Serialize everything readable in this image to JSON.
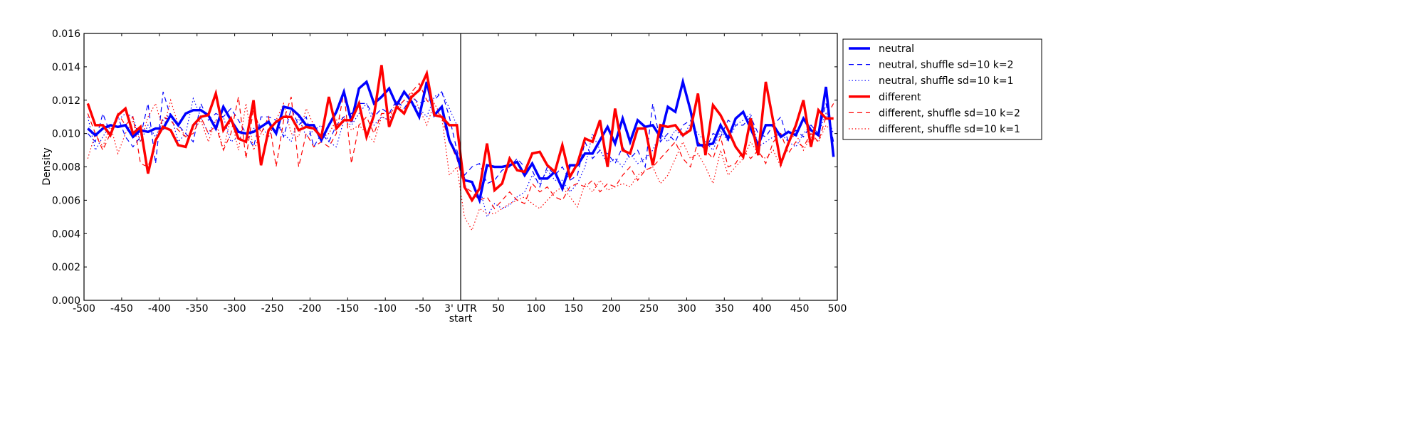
{
  "chart_data": {
    "type": "line",
    "title": "",
    "xlabel": "",
    "ylabel": "Density",
    "xlim": [
      -500,
      500
    ],
    "ylim": [
      0,
      0.016
    ],
    "grid": false,
    "legend_placement": "outside-right-top",
    "x_tick_labels": [
      "-500",
      "-450",
      "-400",
      "-350",
      "-300",
      "-250",
      "-200",
      "-150",
      "-100",
      "-50",
      "3' UTR\nstart",
      "50",
      "100",
      "150",
      "200",
      "250",
      "300",
      "350",
      "400",
      "450",
      "500"
    ],
    "x_ticks": [
      -500,
      -450,
      -400,
      -350,
      -300,
      -250,
      -200,
      -150,
      -100,
      -50,
      0,
      50,
      100,
      150,
      200,
      250,
      300,
      350,
      400,
      450,
      500
    ],
    "y_tick_labels": [
      "0.000",
      "0.002",
      "0.004",
      "0.006",
      "0.008",
      "0.010",
      "0.012",
      "0.014",
      "0.016"
    ],
    "y_ticks": [
      0,
      0.002,
      0.004,
      0.006,
      0.008,
      0.01,
      0.012,
      0.014,
      0.016
    ],
    "reference_line_x": 0,
    "x": {
      "start": -495,
      "step": 10,
      "count": 100
    },
    "series": [
      {
        "name": "neutral",
        "color": "#0000ff",
        "style": "solid-thick",
        "values": [
          0.0103,
          0.0099,
          0.0103,
          0.0105,
          0.0104,
          0.0105,
          0.0098,
          0.0102,
          0.0101,
          0.0103,
          0.0103,
          0.0111,
          0.0105,
          0.0112,
          0.0114,
          0.0114,
          0.0111,
          0.0103,
          0.0116,
          0.0108,
          0.0101,
          0.01,
          0.0101,
          0.0104,
          0.0107,
          0.01,
          0.0116,
          0.0115,
          0.0111,
          0.0105,
          0.0105,
          0.0096,
          0.0105,
          0.0113,
          0.0125,
          0.0107,
          0.0127,
          0.0131,
          0.0118,
          0.0122,
          0.0127,
          0.0117,
          0.0125,
          0.0119,
          0.011,
          0.0131,
          0.0111,
          0.0116,
          0.0096,
          0.0087,
          0.0072,
          0.0071,
          0.006,
          0.0081,
          0.008,
          0.008,
          0.0081,
          0.0083,
          0.0075,
          0.0082,
          0.0073,
          0.0073,
          0.0077,
          0.0067,
          0.0081,
          0.0081,
          0.0088,
          0.0088,
          0.0096,
          0.0104,
          0.0094,
          0.0109,
          0.0095,
          0.0108,
          0.0104,
          0.0105,
          0.0098,
          0.0116,
          0.0113,
          0.0131,
          0.0114,
          0.0093,
          0.0093,
          0.0094,
          0.0105,
          0.0097,
          0.0109,
          0.0113,
          0.0103,
          0.0093,
          0.0105,
          0.0105,
          0.0098,
          0.0101,
          0.0099,
          0.0109,
          0.0102,
          0.0099,
          0.0128,
          0.0086
        ]
      },
      {
        "name": "neutral, shuffle sd=10 k=2",
        "color": "#0000ff",
        "style": "dashed",
        "values": [
          0.01,
          0.0095,
          0.0112,
          0.01,
          0.011,
          0.0098,
          0.0092,
          0.0098,
          0.0118,
          0.0082,
          0.0125,
          0.011,
          0.0105,
          0.01,
          0.0095,
          0.0118,
          0.0108,
          0.0112,
          0.011,
          0.0115,
          0.0108,
          0.01,
          0.0092,
          0.011,
          0.011,
          0.0108,
          0.0098,
          0.0115,
          0.0105,
          0.011,
          0.0092,
          0.01,
          0.0095,
          0.0105,
          0.011,
          0.0112,
          0.0118,
          0.0118,
          0.011,
          0.0115,
          0.0112,
          0.012,
          0.0115,
          0.0122,
          0.0118,
          0.012,
          0.012,
          0.0125,
          0.011,
          0.009,
          0.0075,
          0.008,
          0.0082,
          0.007,
          0.0072,
          0.0078,
          0.008,
          0.0085,
          0.008,
          0.0078,
          0.0068,
          0.008,
          0.0075,
          0.008,
          0.0072,
          0.0075,
          0.0095,
          0.0085,
          0.009,
          0.0088,
          0.0082,
          0.0092,
          0.0085,
          0.009,
          0.008,
          0.0118,
          0.0095,
          0.01,
          0.0095,
          0.0105,
          0.0108,
          0.0095,
          0.009,
          0.01,
          0.0098,
          0.0108,
          0.0105,
          0.0105,
          0.011,
          0.01,
          0.0098,
          0.0105,
          0.011,
          0.0095,
          0.0102,
          0.0098,
          0.0105,
          0.01,
          0.0118,
          0.0095
        ]
      },
      {
        "name": "neutral, shuffle sd=10 k=1",
        "color": "#0000ff",
        "style": "dotted",
        "values": [
          0.011,
          0.009,
          0.0098,
          0.0105,
          0.0108,
          0.0112,
          0.011,
          0.0095,
          0.0105,
          0.0098,
          0.0108,
          0.0112,
          0.0095,
          0.01,
          0.0121,
          0.011,
          0.01,
          0.0108,
          0.011,
          0.0095,
          0.0098,
          0.0095,
          0.0103,
          0.0105,
          0.0098,
          0.0108,
          0.01,
          0.0095,
          0.011,
          0.0098,
          0.0102,
          0.0105,
          0.0095,
          0.0092,
          0.0108,
          0.0105,
          0.0112,
          0.0118,
          0.0105,
          0.011,
          0.0108,
          0.0115,
          0.012,
          0.0118,
          0.0115,
          0.011,
          0.0122,
          0.0125,
          0.0115,
          0.0105,
          0.007,
          0.006,
          0.0068,
          0.005,
          0.0058,
          0.0055,
          0.0057,
          0.0062,
          0.0065,
          0.0075,
          0.007,
          0.0078,
          0.0072,
          0.0072,
          0.0065,
          0.007,
          0.008,
          0.01,
          0.009,
          0.0082,
          0.0085,
          0.008,
          0.0088,
          0.0082,
          0.0085,
          0.009,
          0.01,
          0.0095,
          0.0102,
          0.0098,
          0.0106,
          0.01,
          0.0095,
          0.009,
          0.0102,
          0.0095,
          0.0105,
          0.0108,
          0.0112,
          0.0092,
          0.0095,
          0.0098,
          0.01,
          0.0095,
          0.0092,
          0.01,
          0.0105,
          0.01,
          0.0112,
          0.01
        ]
      },
      {
        "name": "different",
        "color": "#ff0000",
        "style": "solid-thick",
        "values": [
          0.0118,
          0.0105,
          0.0105,
          0.0099,
          0.0111,
          0.0115,
          0.01,
          0.0104,
          0.0076,
          0.0096,
          0.0104,
          0.0102,
          0.0093,
          0.0092,
          0.0105,
          0.011,
          0.0111,
          0.0124,
          0.0102,
          0.0109,
          0.0097,
          0.0095,
          0.012,
          0.0081,
          0.0102,
          0.0107,
          0.011,
          0.011,
          0.0102,
          0.0104,
          0.0103,
          0.0098,
          0.0122,
          0.0103,
          0.0108,
          0.0108,
          0.0118,
          0.0098,
          0.0111,
          0.0141,
          0.0104,
          0.0116,
          0.0112,
          0.0122,
          0.0126,
          0.0136,
          0.0111,
          0.011,
          0.0105,
          0.0105,
          0.0068,
          0.006,
          0.0067,
          0.0094,
          0.0066,
          0.007,
          0.0085,
          0.0078,
          0.0077,
          0.0088,
          0.0089,
          0.0081,
          0.0077,
          0.0093,
          0.0074,
          0.0082,
          0.0097,
          0.0095,
          0.0108,
          0.008,
          0.0115,
          0.009,
          0.0088,
          0.0103,
          0.0103,
          0.0081,
          0.0105,
          0.0104,
          0.0105,
          0.0099,
          0.0102,
          0.0124,
          0.0087,
          0.0117,
          0.0111,
          0.0102,
          0.0092,
          0.0086,
          0.0109,
          0.0087,
          0.0131,
          0.0107,
          0.0082,
          0.0094,
          0.0105,
          0.012,
          0.0092,
          0.0114,
          0.0109,
          0.0109
        ]
      },
      {
        "name": "different, shuffle sd=10 k=2",
        "color": "#ff0000",
        "style": "dashed",
        "values": [
          0.0112,
          0.01,
          0.009,
          0.01,
          0.0112,
          0.0105,
          0.011,
          0.0082,
          0.008,
          0.0095,
          0.011,
          0.0108,
          0.0102,
          0.0098,
          0.01,
          0.011,
          0.01,
          0.0105,
          0.009,
          0.01,
          0.0122,
          0.0085,
          0.0115,
          0.01,
          0.011,
          0.008,
          0.0108,
          0.0122,
          0.008,
          0.01,
          0.0092,
          0.0095,
          0.0092,
          0.01,
          0.0125,
          0.0082,
          0.0105,
          0.011,
          0.01,
          0.0112,
          0.0112,
          0.0115,
          0.012,
          0.0125,
          0.013,
          0.012,
          0.0115,
          0.011,
          0.0095,
          0.0085,
          0.0068,
          0.0065,
          0.006,
          0.0062,
          0.0055,
          0.006,
          0.0065,
          0.006,
          0.0058,
          0.007,
          0.0065,
          0.0068,
          0.0062,
          0.006,
          0.0068,
          0.007,
          0.0068,
          0.0072,
          0.0065,
          0.007,
          0.0068,
          0.0075,
          0.008,
          0.0072,
          0.0078,
          0.008,
          0.0085,
          0.009,
          0.0095,
          0.0085,
          0.008,
          0.0095,
          0.009,
          0.0085,
          0.0098,
          0.008,
          0.0082,
          0.009,
          0.0085,
          0.009,
          0.0082,
          0.0095,
          0.01,
          0.0088,
          0.0095,
          0.0092,
          0.01,
          0.0095,
          0.011,
          0.0118
        ]
      },
      {
        "name": "different, shuffle sd=10 k=1",
        "color": "#ff0000",
        "style": "dotted",
        "values": [
          0.0085,
          0.01,
          0.0092,
          0.0105,
          0.0088,
          0.01,
          0.0108,
          0.0095,
          0.011,
          0.0118,
          0.0102,
          0.012,
          0.0105,
          0.0098,
          0.0102,
          0.0108,
          0.0095,
          0.0108,
          0.009,
          0.011,
          0.009,
          0.0118,
          0.009,
          0.01,
          0.0098,
          0.0108,
          0.0118,
          0.01,
          0.0098,
          0.0115,
          0.0105,
          0.0098,
          0.01,
          0.0108,
          0.011,
          0.0102,
          0.0105,
          0.01,
          0.0095,
          0.011,
          0.0108,
          0.012,
          0.0112,
          0.0125,
          0.0115,
          0.0105,
          0.0118,
          0.011,
          0.0075,
          0.008,
          0.005,
          0.0042,
          0.0055,
          0.0052,
          0.0052,
          0.0055,
          0.0058,
          0.006,
          0.0062,
          0.0058,
          0.0055,
          0.006,
          0.0065,
          0.0068,
          0.0062,
          0.0056,
          0.007,
          0.0065,
          0.0072,
          0.0066,
          0.0068,
          0.007,
          0.0068,
          0.0075,
          0.0078,
          0.008,
          0.007,
          0.0075,
          0.0085,
          0.0095,
          0.0085,
          0.0088,
          0.008,
          0.007,
          0.009,
          0.0075,
          0.008,
          0.0085,
          0.0095,
          0.0088,
          0.0085,
          0.009,
          0.008,
          0.0095,
          0.01,
          0.009,
          0.0098,
          0.0095,
          0.0105,
          0.01
        ]
      }
    ]
  }
}
